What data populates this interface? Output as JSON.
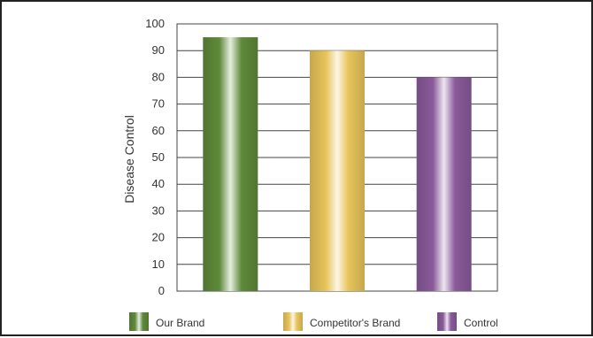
{
  "chart_data": {
    "type": "bar",
    "categories": [
      "Our Brand",
      "Competitor's Brand",
      "Control"
    ],
    "values": [
      95,
      90,
      80
    ],
    "ylabel": "Disease Control",
    "xlabel": "",
    "ylim": [
      0,
      100
    ],
    "yticks": [
      0,
      10,
      20,
      30,
      40,
      50,
      60,
      70,
      80,
      90,
      100
    ],
    "grid": true,
    "legend_position": "bottom",
    "colors": [
      "#5e8a3a",
      "#e8c45a",
      "#8a5a9a"
    ]
  }
}
